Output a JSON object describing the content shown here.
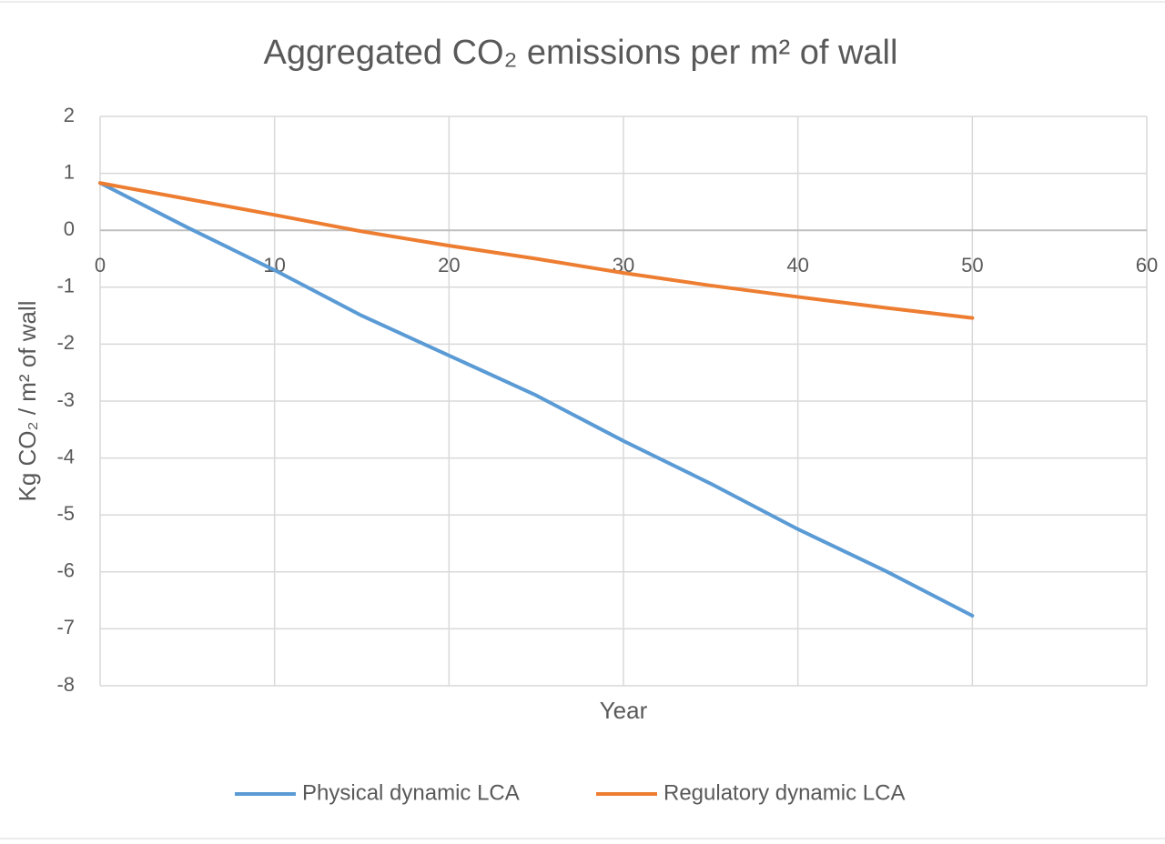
{
  "chart_data": {
    "type": "line",
    "title": "Aggregated CO₂ emissions per m² of wall",
    "x_label": "Year",
    "y_label": "Kg CO₂ / m² of wall",
    "x": [
      0,
      5,
      10,
      15,
      20,
      25,
      30,
      35,
      40,
      45,
      50
    ],
    "series": [
      {
        "name": "Physical dynamic LCA",
        "color": "#5b9bd5",
        "values": [
          0.83,
          0.05,
          -0.7,
          -1.5,
          -2.2,
          -2.9,
          -3.7,
          -4.45,
          -5.25,
          -5.98,
          -6.77
        ]
      },
      {
        "name": "Regulatory dynamic LCA",
        "color": "#ed7d31",
        "values": [
          0.83,
          0.55,
          0.27,
          -0.02,
          -0.27,
          -0.5,
          -0.75,
          -0.97,
          -1.17,
          -1.36,
          -1.54
        ]
      }
    ],
    "xlim": [
      0,
      60
    ],
    "xticks": [
      0,
      10,
      20,
      30,
      40,
      50,
      60
    ],
    "ylim": [
      -8,
      2
    ],
    "yticks": [
      -8,
      -7,
      -6,
      -5,
      -4,
      -3,
      -2,
      -1,
      0,
      1,
      2
    ],
    "grid": true,
    "legend": "bottom"
  }
}
